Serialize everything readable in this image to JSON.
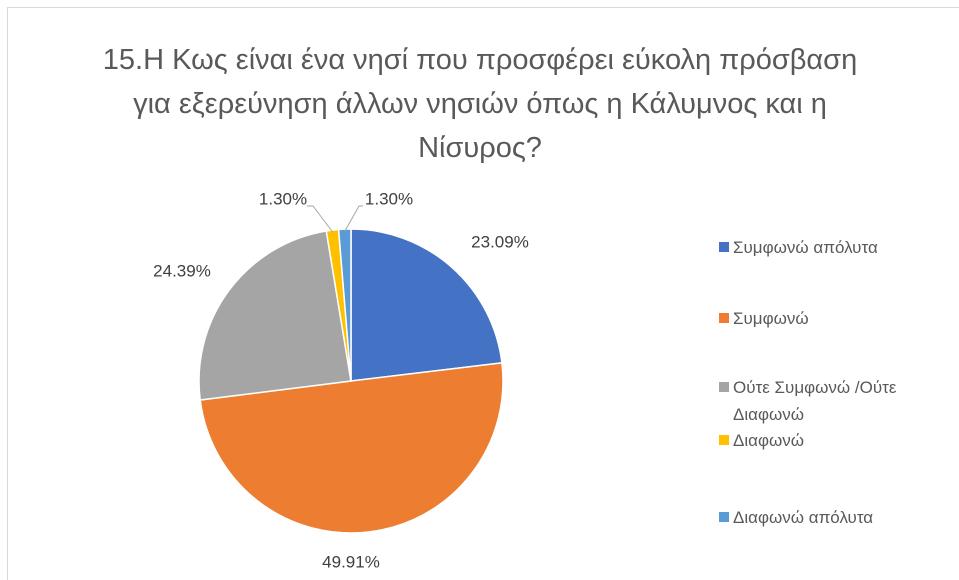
{
  "chart_data": {
    "type": "pie",
    "title": "15.Η Κως είναι ένα νησί που προσφέρει εύκολη πρόσβαση για εξερεύνηση άλλων νησιών όπως η Κάλυμνος και η Νίσυρος?",
    "categories": [
      "Συμφωνώ απόλυτα",
      "Συμφωνώ",
      "Ούτε Συμφωνώ /Ούτε Διαφωνώ",
      "Διαφωνώ",
      "Διαφωνώ απόλυτα"
    ],
    "values": [
      23.09,
      49.91,
      24.39,
      1.3,
      1.3
    ],
    "value_labels": [
      "23.09%",
      "49.91%",
      "24.39%",
      "1.30%",
      "1.30%"
    ],
    "colors": [
      "#4472c4",
      "#ed7d31",
      "#a5a5a5",
      "#ffc000",
      "#5b9bd5"
    ],
    "legend": "right"
  }
}
